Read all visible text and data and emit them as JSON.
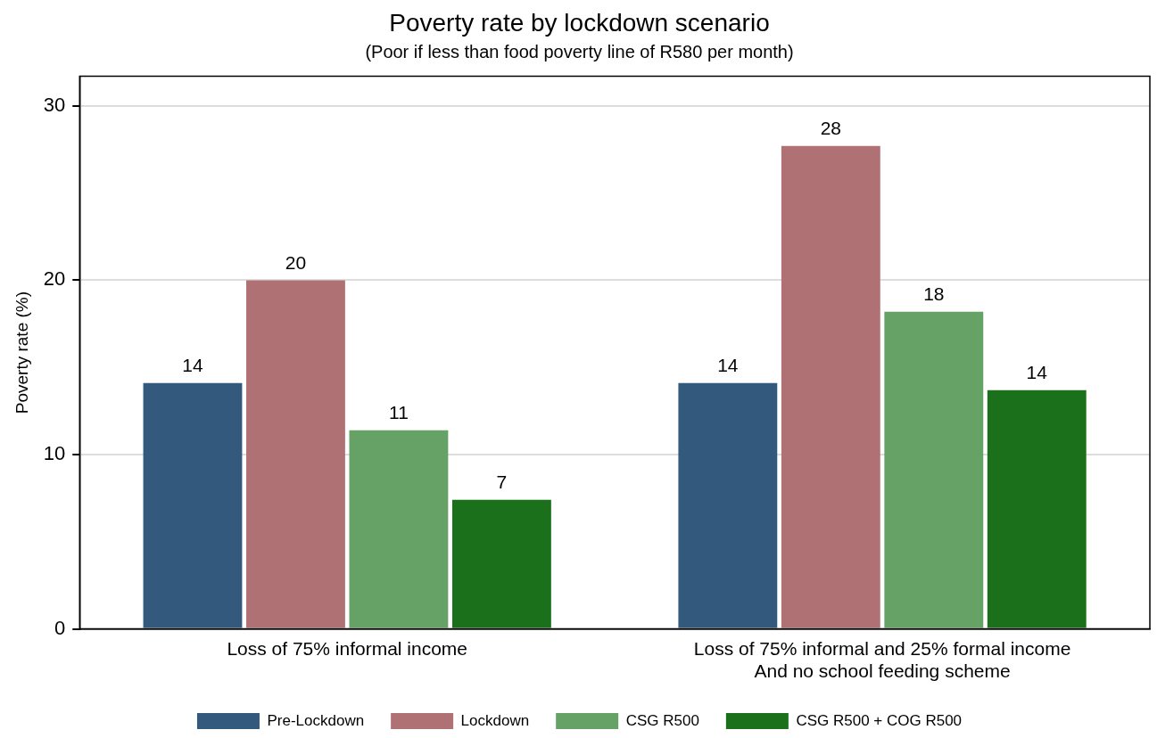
{
  "chart_data": {
    "type": "bar",
    "title": "Poverty rate by lockdown scenario",
    "subtitle": "(Poor if less than food poverty line of R580 per month)",
    "ylabel": "Poverty rate (%)",
    "categories": [
      "Loss of 75% informal income",
      "Loss of 75% informal and 25% formal income\nAnd no school feeding scheme"
    ],
    "series": [
      {
        "name": "Pre-Lockdown",
        "color": "#335a7d",
        "values": [
          14.1,
          14.1
        ],
        "value_labels": [
          "14",
          "14"
        ]
      },
      {
        "name": "Lockdown",
        "color": "#b07174",
        "values": [
          20.0,
          27.7
        ],
        "value_labels": [
          "20",
          "28"
        ]
      },
      {
        "name": "CSG R500",
        "color": "#66a266",
        "values": [
          11.4,
          18.2
        ],
        "value_labels": [
          "11",
          "18"
        ]
      },
      {
        "name": "CSG R500 + COG R500",
        "color": "#1b711b",
        "values": [
          7.4,
          13.7
        ],
        "value_labels": [
          "7",
          "14"
        ]
      }
    ],
    "ylim": [
      0,
      31.7
    ],
    "yticks": [
      0,
      10,
      20,
      30
    ],
    "grid": "y",
    "legend": "bottom"
  }
}
